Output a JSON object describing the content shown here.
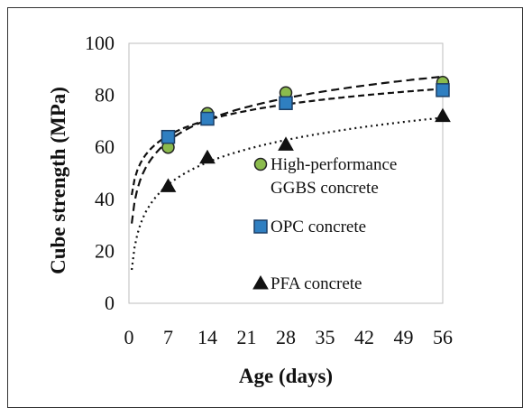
{
  "chart_data": {
    "type": "scatter",
    "xlabel": "Age (days)",
    "ylabel": "Cube strength (MPa)",
    "xlim": [
      0,
      56
    ],
    "ylim": [
      0,
      100
    ],
    "x_ticks": [
      "0",
      "7",
      "14",
      "21",
      "28",
      "35",
      "42",
      "49",
      "56"
    ],
    "y_ticks": [
      "0",
      "20",
      "40",
      "60",
      "80",
      "100"
    ],
    "grid": false,
    "legend_position": "inside-right",
    "series": [
      {
        "name": [
          "High-performance",
          "GGBS concrete"
        ],
        "marker": "circle",
        "marker_color": "#8bbb4d",
        "marker_edge": "#222222",
        "trendline": "long-dash",
        "x": [
          7,
          14,
          28,
          56
        ],
        "y": [
          60,
          73,
          81,
          85
        ]
      },
      {
        "name": [
          "OPC concrete"
        ],
        "marker": "square",
        "marker_color": "#2f7fc1",
        "marker_edge": "#1c3f66",
        "trendline": "dash",
        "x": [
          7,
          14,
          28,
          56
        ],
        "y": [
          64,
          71,
          77,
          82
        ]
      },
      {
        "name": [
          "PFA concrete"
        ],
        "marker": "triangle",
        "marker_color": "#111111",
        "marker_edge": "#111111",
        "trendline": "dot",
        "x": [
          7,
          14,
          28,
          56
        ],
        "y": [
          45,
          56,
          61,
          72
        ]
      }
    ]
  }
}
